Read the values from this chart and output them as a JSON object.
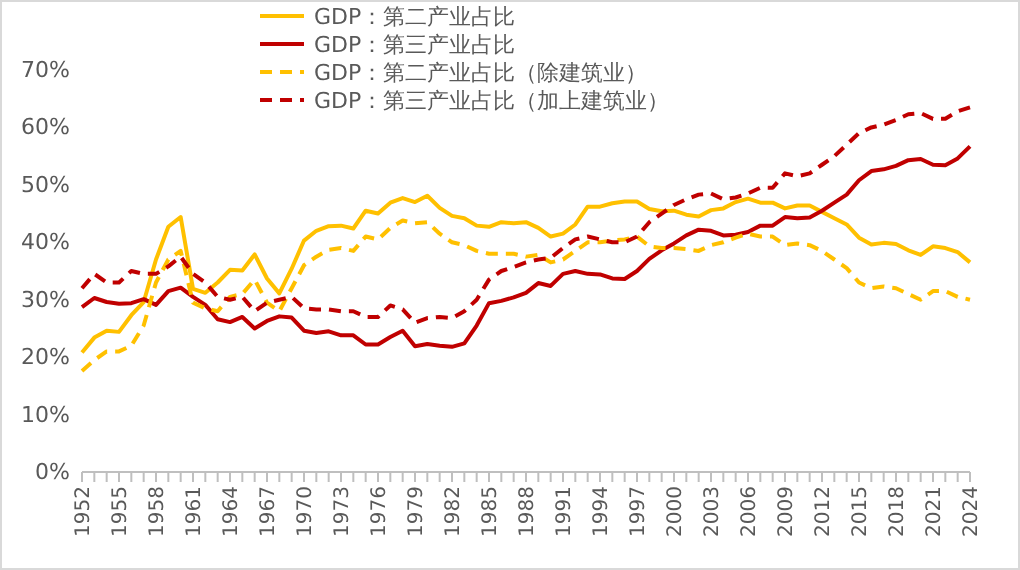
{
  "chart_data": {
    "type": "line",
    "legend": "top",
    "marker": "none",
    "grid": false,
    "x": [
      1952,
      1953,
      1954,
      1955,
      1956,
      1957,
      1958,
      1959,
      1960,
      1961,
      1962,
      1963,
      1964,
      1965,
      1966,
      1967,
      1968,
      1969,
      1970,
      1971,
      1972,
      1973,
      1974,
      1975,
      1976,
      1977,
      1978,
      1979,
      1980,
      1981,
      1982,
      1983,
      1984,
      1985,
      1986,
      1987,
      1988,
      1989,
      1990,
      1991,
      1992,
      1993,
      1994,
      1995,
      1996,
      1997,
      1998,
      1999,
      2000,
      2001,
      2002,
      2003,
      2004,
      2005,
      2006,
      2007,
      2008,
      2009,
      2010,
      2011,
      2012,
      2013,
      2014,
      2015,
      2016,
      2017,
      2018,
      2019,
      2020,
      2021,
      2022,
      2023,
      2024
    ],
    "xlim": [
      1952,
      2024
    ],
    "xticks": [
      {
        "value": 1952,
        "label": "1952"
      },
      {
        "value": 1953,
        "label": null
      },
      {
        "value": 1954,
        "label": null
      },
      {
        "value": 1955,
        "label": "1955"
      },
      {
        "value": 1956,
        "label": null
      },
      {
        "value": 1957,
        "label": null
      },
      {
        "value": 1958,
        "label": "1958"
      },
      {
        "value": 1959,
        "label": null
      },
      {
        "value": 1960,
        "label": null
      },
      {
        "value": 1961,
        "label": "1961"
      },
      {
        "value": 1962,
        "label": null
      },
      {
        "value": 1963,
        "label": null
      },
      {
        "value": 1964,
        "label": "1964"
      },
      {
        "value": 1965,
        "label": null
      },
      {
        "value": 1966,
        "label": null
      },
      {
        "value": 1967,
        "label": "1967"
      },
      {
        "value": 1968,
        "label": null
      },
      {
        "value": 1969,
        "label": null
      },
      {
        "value": 1970,
        "label": "1970"
      },
      {
        "value": 1971,
        "label": null
      },
      {
        "value": 1972,
        "label": null
      },
      {
        "value": 1973,
        "label": "1973"
      },
      {
        "value": 1974,
        "label": null
      },
      {
        "value": 1975,
        "label": null
      },
      {
        "value": 1976,
        "label": "1976"
      },
      {
        "value": 1977,
        "label": null
      },
      {
        "value": 1978,
        "label": null
      },
      {
        "value": 1979,
        "label": "1979"
      },
      {
        "value": 1980,
        "label": null
      },
      {
        "value": 1981,
        "label": null
      },
      {
        "value": 1982,
        "label": "1982"
      },
      {
        "value": 1983,
        "label": null
      },
      {
        "value": 1984,
        "label": null
      },
      {
        "value": 1985,
        "label": "1985"
      },
      {
        "value": 1986,
        "label": null
      },
      {
        "value": 1987,
        "label": null
      },
      {
        "value": 1988,
        "label": "1988"
      },
      {
        "value": 1989,
        "label": null
      },
      {
        "value": 1990,
        "label": null
      },
      {
        "value": 1991,
        "label": "1991"
      },
      {
        "value": 1992,
        "label": null
      },
      {
        "value": 1993,
        "label": null
      },
      {
        "value": 1994,
        "label": "1994"
      },
      {
        "value": 1995,
        "label": null
      },
      {
        "value": 1996,
        "label": null
      },
      {
        "value": 1997,
        "label": "1997"
      },
      {
        "value": 1998,
        "label": null
      },
      {
        "value": 1999,
        "label": null
      },
      {
        "value": 2000,
        "label": "2000"
      },
      {
        "value": 2001,
        "label": null
      },
      {
        "value": 2002,
        "label": null
      },
      {
        "value": 2003,
        "label": "2003"
      },
      {
        "value": 2004,
        "label": null
      },
      {
        "value": 2005,
        "label": null
      },
      {
        "value": 2006,
        "label": "2006"
      },
      {
        "value": 2007,
        "label": null
      },
      {
        "value": 2008,
        "label": null
      },
      {
        "value": 2009,
        "label": "2009"
      },
      {
        "value": 2010,
        "label": null
      },
      {
        "value": 2011,
        "label": null
      },
      {
        "value": 2012,
        "label": "2012"
      },
      {
        "value": 2013,
        "label": null
      },
      {
        "value": 2014,
        "label": null
      },
      {
        "value": 2015,
        "label": "2015"
      },
      {
        "value": 2016,
        "label": null
      },
      {
        "value": 2017,
        "label": null
      },
      {
        "value": 2018,
        "label": "2018"
      },
      {
        "value": 2019,
        "label": null
      },
      {
        "value": 2020,
        "label": null
      },
      {
        "value": 2021,
        "label": "2021"
      },
      {
        "value": 2022,
        "label": null
      },
      {
        "value": 2023,
        "label": null
      },
      {
        "value": 2024,
        "label": "2024"
      }
    ],
    "ylim": [
      0,
      70
    ],
    "yticks": [
      {
        "value": 0,
        "label": "0%"
      },
      {
        "value": 10,
        "label": "10%"
      },
      {
        "value": 20,
        "label": "20%"
      },
      {
        "value": 30,
        "label": "30%"
      },
      {
        "value": 40,
        "label": "40%"
      },
      {
        "value": 50,
        "label": "50%"
      },
      {
        "value": 60,
        "label": "60%"
      },
      {
        "value": 70,
        "label": "70%"
      }
    ],
    "series": [
      {
        "name": "GDP：第二产业占比",
        "color": "#ffc000",
        "line_style": "solid",
        "values": [
          20.8,
          23.4,
          24.6,
          24.4,
          27.3,
          29.6,
          37.0,
          42.7,
          44.4,
          31.9,
          31.2,
          33.0,
          35.2,
          35.1,
          37.9,
          33.7,
          31.1,
          35.4,
          40.3,
          42.0,
          42.8,
          42.9,
          42.4,
          45.5,
          45.0,
          46.9,
          47.7,
          47.0,
          48.1,
          46.0,
          44.6,
          44.2,
          42.9,
          42.7,
          43.5,
          43.3,
          43.5,
          42.5,
          41.0,
          41.5,
          43.1,
          46.2,
          46.2,
          46.8,
          47.1,
          47.1,
          45.8,
          45.4,
          45.5,
          44.8,
          44.5,
          45.6,
          45.9,
          47.0,
          47.6,
          46.9,
          46.9,
          45.9,
          46.4,
          46.4,
          45.3,
          44.2,
          43.1,
          40.8,
          39.6,
          39.9,
          39.7,
          38.6,
          37.8,
          39.3,
          39.0,
          38.3,
          36.5
        ]
      },
      {
        "name": "GDP：第三产业占比",
        "color": "#c00000",
        "line_style": "solid",
        "values": [
          28.7,
          30.3,
          29.6,
          29.3,
          29.4,
          30.1,
          29.1,
          31.5,
          32.1,
          30.5,
          29.1,
          26.6,
          26.1,
          27.0,
          25.0,
          26.3,
          27.1,
          26.9,
          24.6,
          24.2,
          24.5,
          23.8,
          23.8,
          22.2,
          22.2,
          23.5,
          24.6,
          21.9,
          22.3,
          22.0,
          21.8,
          22.4,
          25.5,
          29.4,
          29.8,
          30.4,
          31.2,
          32.9,
          32.4,
          34.5,
          35.0,
          34.5,
          34.4,
          33.7,
          33.6,
          35.0,
          37.1,
          38.6,
          39.8,
          41.2,
          42.2,
          42.0,
          41.2,
          41.3,
          41.8,
          42.9,
          42.9,
          44.4,
          44.2,
          44.3,
          45.5,
          46.9,
          48.3,
          50.8,
          52.4,
          52.7,
          53.3,
          54.3,
          54.5,
          53.5,
          53.4,
          54.6,
          56.7
        ]
      },
      {
        "name": "GDP：第二产业占比（除建筑业）",
        "color": "#ffc000",
        "line_style": "dashed",
        "values": [
          17.6,
          19.5,
          21.0,
          21.0,
          22.0,
          25.5,
          33.0,
          37.0,
          38.5,
          29.5,
          28.5,
          28.0,
          30.5,
          31.0,
          33.5,
          29.5,
          28.0,
          32.0,
          36.0,
          37.5,
          38.7,
          39.0,
          38.5,
          41.0,
          40.5,
          42.5,
          43.8,
          43.3,
          43.5,
          41.5,
          40.0,
          39.5,
          38.5,
          38.0,
          38.0,
          38.0,
          37.5,
          37.8,
          36.5,
          37.0,
          38.5,
          40.0,
          40.0,
          40.3,
          40.5,
          41.0,
          39.3,
          39.0,
          39.0,
          38.8,
          38.5,
          39.5,
          40.0,
          40.8,
          41.5,
          41.0,
          41.0,
          39.5,
          39.8,
          39.5,
          38.5,
          37.0,
          35.5,
          33.0,
          32.0,
          32.3,
          32.0,
          31.0,
          30.0,
          31.5,
          31.5,
          30.5,
          30.0
        ]
      },
      {
        "name": "GDP：第三产业占比（加上建筑业）",
        "color": "#c00000",
        "line_style": "dashed",
        "values": [
          32.0,
          34.5,
          33.0,
          33.0,
          35.0,
          34.5,
          34.5,
          35.8,
          37.5,
          34.5,
          33.0,
          30.5,
          30.0,
          30.5,
          28.0,
          29.5,
          30.0,
          30.5,
          28.5,
          28.3,
          28.3,
          28.0,
          28.0,
          27.0,
          27.0,
          29.0,
          28.3,
          26.0,
          26.8,
          27.0,
          26.8,
          28.0,
          30.0,
          33.5,
          35.0,
          35.7,
          36.5,
          37.0,
          37.3,
          39.0,
          40.5,
          41.0,
          40.5,
          40.0,
          40.0,
          41.0,
          43.5,
          45.0,
          46.5,
          47.5,
          48.3,
          48.5,
          47.5,
          47.8,
          48.5,
          49.5,
          49.5,
          52.0,
          51.5,
          52.0,
          53.5,
          55.0,
          57.0,
          59.0,
          60.0,
          60.5,
          61.3,
          62.3,
          62.5,
          61.5,
          61.5,
          62.8,
          63.5
        ]
      }
    ]
  }
}
